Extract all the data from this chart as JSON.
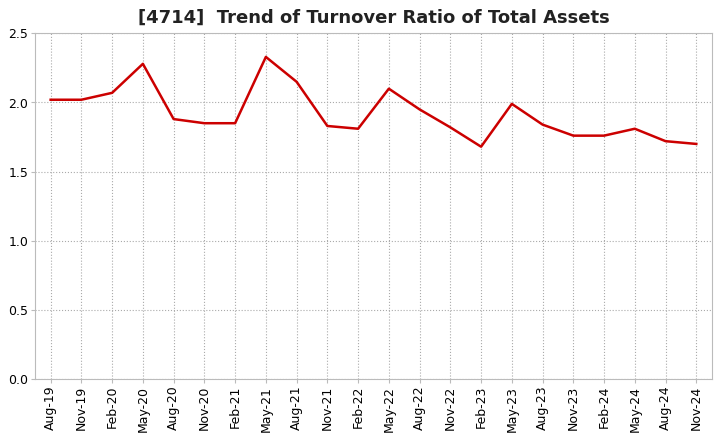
{
  "title": "[4714]  Trend of Turnover Ratio of Total Assets",
  "x_labels": [
    "Aug-19",
    "Nov-19",
    "Feb-20",
    "May-20",
    "Aug-20",
    "Nov-20",
    "Feb-21",
    "May-21",
    "Aug-21",
    "Nov-21",
    "Feb-22",
    "May-22",
    "Aug-22",
    "Nov-22",
    "Feb-23",
    "May-23",
    "Aug-23",
    "Nov-23",
    "Feb-24",
    "May-24",
    "Aug-24",
    "Nov-24"
  ],
  "y_values": [
    2.02,
    2.02,
    2.07,
    2.28,
    1.88,
    1.85,
    1.85,
    2.33,
    2.15,
    1.83,
    1.81,
    2.1,
    1.95,
    1.82,
    1.68,
    1.99,
    1.84,
    1.76,
    1.76,
    1.81,
    1.72,
    1.7
  ],
  "ylim": [
    0.0,
    2.5
  ],
  "yticks": [
    0.0,
    0.5,
    1.0,
    1.5,
    2.0,
    2.5
  ],
  "line_color": "#cc0000",
  "line_width": 1.8,
  "background_color": "#ffffff",
  "plot_bg_color": "#ffffff",
  "grid_color": "#aaaaaa",
  "title_fontsize": 13,
  "tick_fontsize": 9,
  "title_color": "#222222",
  "title_fontweight": "bold"
}
